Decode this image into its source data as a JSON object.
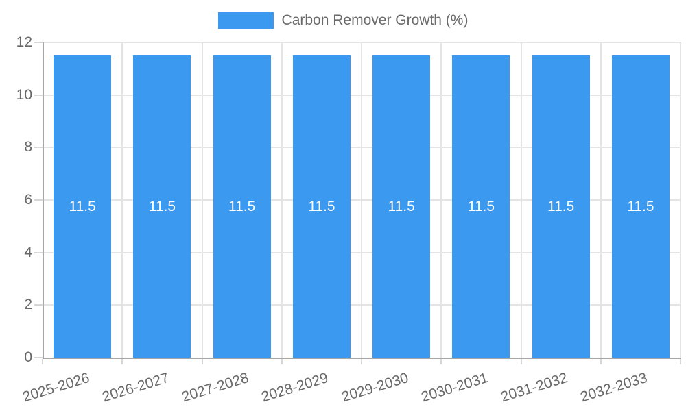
{
  "legend": {
    "label": "Carbon Remover Growth (%)"
  },
  "chart_data": {
    "type": "bar",
    "title": "Carbon Remover Growth (%)",
    "categories": [
      "2025-2026",
      "2026-2027",
      "2027-2028",
      "2028-2029",
      "2029-2030",
      "2030-2031",
      "2031-2032",
      "2032-2033"
    ],
    "values": [
      11.5,
      11.5,
      11.5,
      11.5,
      11.5,
      11.5,
      11.5,
      11.5
    ],
    "value_labels": [
      "11.5",
      "11.5",
      "11.5",
      "11.5",
      "11.5",
      "11.5",
      "11.5",
      "11.5"
    ],
    "ylim": [
      0,
      12
    ],
    "yticks": [
      0,
      2,
      4,
      6,
      8,
      10,
      12
    ],
    "xlabel": "",
    "ylabel": "",
    "grid": true,
    "legend_position": "top",
    "bar_color": "#3b99f0",
    "value_label_color": "#ffffff"
  },
  "colors": {
    "bar": "#3b99f0",
    "grid_light": "#e4e4e4",
    "axis": "#a8a8a8",
    "tick": "#d6d6d6",
    "text": "#696969",
    "bar_label": "#ffffff",
    "background": "#ffffff"
  }
}
